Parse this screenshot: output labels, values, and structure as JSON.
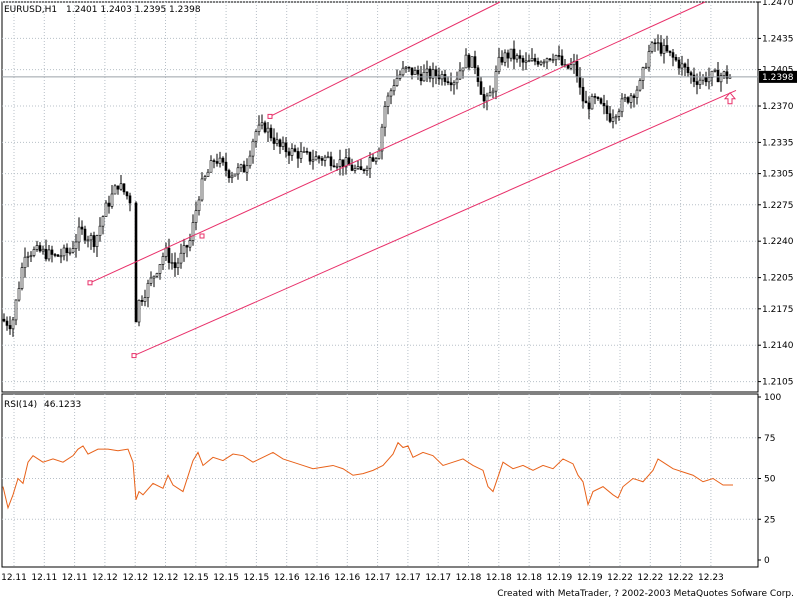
{
  "chart_data": [
    {
      "type": "candlestick",
      "symbol_label": "EURUSD,H1",
      "ohlc_label": "1.2401 1.2403 1.2395 1.2398",
      "last_price": 1.2398,
      "last_price_label": "1.2398",
      "colors": {
        "candles": "#000000",
        "channel": "#e8306a",
        "marker": "#e8306a",
        "price_label_bg": "#000000"
      },
      "ylim": [
        1.2095,
        1.247
      ],
      "yticks": [
        "1.2470",
        "1.2435",
        "1.2405",
        "1.2370",
        "1.2335",
        "1.2305",
        "1.2275",
        "1.2240",
        "1.2205",
        "1.2175",
        "1.2140",
        "1.2105"
      ],
      "xticks": [
        "12.11",
        "12.11",
        "12.11",
        "12.12",
        "12.12",
        "12.12",
        "12.15",
        "12.15",
        "12.15",
        "12.16",
        "12.16",
        "12.16",
        "12.17",
        "12.17",
        "12.17",
        "12.18",
        "12.18",
        "12.18",
        "12.19",
        "12.19",
        "12.22",
        "12.22",
        "12.22",
        "12.23"
      ],
      "grid": true,
      "close_path": [
        [
          0,
          1.2165
        ],
        [
          12,
          1.216
        ],
        [
          25,
          1.223
        ],
        [
          40,
          1.223
        ],
        [
          55,
          1.2225
        ],
        [
          70,
          1.223
        ],
        [
          80,
          1.225
        ],
        [
          95,
          1.224
        ],
        [
          105,
          1.227
        ],
        [
          118,
          1.2295
        ],
        [
          130,
          1.228
        ],
        [
          132,
          1.214
        ],
        [
          138,
          1.218
        ],
        [
          150,
          1.22
        ],
        [
          165,
          1.223
        ],
        [
          175,
          1.2215
        ],
        [
          190,
          1.224
        ],
        [
          200,
          1.229
        ],
        [
          215,
          1.232
        ],
        [
          230,
          1.2305
        ],
        [
          245,
          1.231
        ],
        [
          255,
          1.2345
        ],
        [
          265,
          1.235
        ],
        [
          280,
          1.233
        ],
        [
          295,
          1.2325
        ],
        [
          310,
          1.232
        ],
        [
          325,
          1.232
        ],
        [
          345,
          1.2315
        ],
        [
          360,
          1.2305
        ],
        [
          370,
          1.232
        ],
        [
          378,
          1.2325
        ],
        [
          385,
          1.237
        ],
        [
          395,
          1.2395
        ],
        [
          405,
          1.2405
        ],
        [
          420,
          1.24
        ],
        [
          440,
          1.24
        ],
        [
          455,
          1.2395
        ],
        [
          465,
          1.2415
        ],
        [
          475,
          1.241
        ],
        [
          485,
          1.237
        ],
        [
          492,
          1.2385
        ],
        [
          500,
          1.2415
        ],
        [
          510,
          1.242
        ],
        [
          525,
          1.241
        ],
        [
          540,
          1.2415
        ],
        [
          555,
          1.242
        ],
        [
          565,
          1.2405
        ],
        [
          575,
          1.241
        ],
        [
          580,
          1.2385
        ],
        [
          585,
          1.237
        ],
        [
          595,
          1.2375
        ],
        [
          610,
          1.236
        ],
        [
          625,
          1.2375
        ],
        [
          640,
          1.239
        ],
        [
          648,
          1.242
        ],
        [
          655,
          1.243
        ],
        [
          668,
          1.242
        ],
        [
          680,
          1.241
        ],
        [
          695,
          1.2395
        ],
        [
          710,
          1.2398
        ],
        [
          725,
          1.24
        ],
        [
          730,
          1.2398
        ]
      ],
      "channel_lines": [
        {
          "from": [
            270,
            1.236
          ],
          "to": [
            500,
            1.247
          ]
        },
        {
          "from": [
            90,
            1.22
          ],
          "to": [
            705,
            1.247
          ]
        },
        {
          "from": [
            134,
            1.213
          ],
          "to": [
            736,
            1.2385
          ]
        }
      ],
      "channel_anchors": [
        [
          270,
          1.236
        ],
        [
          90,
          1.22
        ],
        [
          202,
          1.2245
        ],
        [
          134,
          1.213
        ]
      ],
      "signal_arrow": [
        730,
        1.2377
      ]
    },
    {
      "type": "line",
      "indicator_label": "RSI(14)",
      "indicator_value": "46.1233",
      "ylim": [
        0,
        100
      ],
      "yticks": [
        "100",
        "75",
        "50",
        "25",
        "0"
      ],
      "colors": {
        "line": "#e8621a"
      },
      "x": [
        0,
        5,
        10,
        15,
        20,
        25,
        30,
        40,
        50,
        60,
        70,
        75,
        80,
        85,
        95,
        105,
        115,
        125,
        130,
        133,
        136,
        140,
        150,
        160,
        165,
        170,
        180,
        190,
        195,
        200,
        210,
        220,
        230,
        240,
        250,
        260,
        270,
        280,
        290,
        300,
        310,
        320,
        330,
        340,
        350,
        360,
        370,
        380,
        390,
        395,
        400,
        405,
        410,
        420,
        430,
        440,
        450,
        460,
        470,
        480,
        485,
        490,
        500,
        510,
        520,
        530,
        540,
        550,
        560,
        570,
        575,
        580,
        585,
        590,
        600,
        610,
        615,
        620,
        630,
        640,
        650,
        655,
        660,
        670,
        680,
        690,
        700,
        710,
        720,
        730
      ],
      "values": [
        45,
        32,
        40,
        50,
        47,
        60,
        64,
        60,
        62,
        60,
        64,
        68,
        70,
        65,
        68,
        68,
        67,
        68,
        60,
        37,
        42,
        40,
        47,
        44,
        52,
        46,
        42,
        61,
        66,
        58,
        63,
        61,
        65,
        64,
        60,
        63,
        66,
        62,
        60,
        58,
        56,
        57,
        58,
        56,
        52,
        53,
        55,
        58,
        65,
        72,
        69,
        70,
        63,
        66,
        64,
        58,
        60,
        62,
        58,
        55,
        45,
        42,
        60,
        56,
        58,
        55,
        58,
        56,
        62,
        59,
        52,
        48,
        34,
        42,
        45,
        40,
        38,
        45,
        50,
        48,
        55,
        62,
        60,
        56,
        54,
        52,
        48,
        50,
        46,
        46
      ]
    }
  ],
  "footer": {
    "credit": "Created with MetaTrader, ? 2002-2003 MetaQuotes Sofware Corp."
  }
}
